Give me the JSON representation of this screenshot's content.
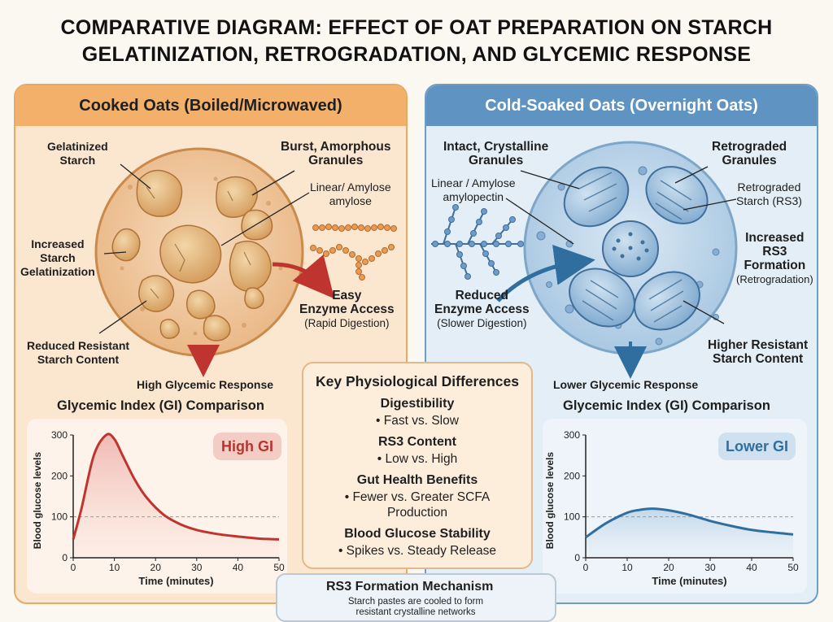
{
  "title": {
    "line1": "COMPARATIVE DIAGRAM: EFFECT OF OAT PREPARATION ON STARCH",
    "line2": "GELATINIZATION, RETROGRADATION, AND GLYCEMIC RESPONSE"
  },
  "left": {
    "header": "Cooked Oats (Boiled/Microwaved)",
    "labels": {
      "gelatinized": [
        "Gelatinized",
        "Starch"
      ],
      "burst": [
        "Burst, Amorphous",
        "Granules"
      ],
      "linear": [
        "Linear/ Amylose",
        "amylose"
      ],
      "increased": [
        "Increased",
        "Starch",
        "Gelatinization"
      ],
      "easy": [
        "Easy",
        "Enzyme Access"
      ],
      "rapid": "(Rapid Digestion)",
      "reduced": [
        "Reduced Resistant",
        "Starch Content"
      ],
      "response": "High Glycemic Response",
      "gi_title": "Glycemic Index (GI) Comparison",
      "badge": "High GI"
    },
    "colors": {
      "accent": "#c0342f",
      "panel": "#fbe7d0",
      "granule": "#e9bd83"
    }
  },
  "right": {
    "header": "Cold-Soaked Oats (Overnight Oats)",
    "labels": {
      "intact": [
        "Intact, Crystalline",
        "Granules"
      ],
      "retro_granules": [
        "Retrograded",
        "Granules"
      ],
      "linear": [
        "Linear / Amylose",
        "amylopectin"
      ],
      "retro_starch": [
        "Retrograded",
        "Starch (RS3)"
      ],
      "increased": [
        "Increased",
        "RS3",
        "Formation"
      ],
      "retrogradation": "(Retrogradation)",
      "reduced": [
        "Reduced",
        "Enzyme Access"
      ],
      "slower": "(Slower Digestion)",
      "higher": [
        "Higher Resistant",
        "Starch Content"
      ],
      "response": "Lower Glycemic Response",
      "gi_title": "Glycemic Index (GI) Comparison",
      "badge": "Lower GI"
    },
    "colors": {
      "accent": "#2f6e9e",
      "panel": "#e3eef6",
      "granule": "#a9c9e3"
    }
  },
  "key": {
    "title": "Key Physiological Differences",
    "items": [
      {
        "heading": "Digestibility",
        "value": "• Fast vs. Slow"
      },
      {
        "heading": "RS3 Content",
        "value": "• Low vs. High"
      },
      {
        "heading": "Gut Health Benefits",
        "value": "• Fewer vs. Greater SCFA",
        "value2": "Production"
      },
      {
        "heading": "Blood Glucose Stability",
        "value": "• Spikes vs. Steady Release"
      }
    ]
  },
  "rs3": {
    "title": "RS3 Formation Mechanism",
    "desc1": "Starch pastes are cooled to form",
    "desc2": "resistant crystalline networks"
  },
  "chart_data": [
    {
      "type": "area",
      "title": "Glycemic Index (GI) Comparison",
      "xlabel": "Time (minutes)",
      "ylabel": "Blood glucose levels",
      "xlim": [
        0,
        50
      ],
      "ylim": [
        0,
        300
      ],
      "x_ticks": [
        0,
        10,
        20,
        30,
        40,
        50
      ],
      "y_ticks": [
        0,
        100,
        200,
        300
      ],
      "reference_line": 100,
      "color": "#c0342f",
      "x": [
        0,
        2,
        5,
        8,
        10,
        12,
        15,
        18,
        22,
        26,
        30,
        35,
        40,
        45,
        50
      ],
      "y": [
        45,
        120,
        250,
        300,
        290,
        250,
        190,
        145,
        105,
        82,
        68,
        58,
        52,
        47,
        45
      ]
    },
    {
      "type": "area",
      "title": "Glycemic Index (GI) Comparison",
      "xlabel": "Time (minutes)",
      "ylabel": "Blood glucose levels",
      "xlim": [
        0,
        50
      ],
      "ylim": [
        0,
        300
      ],
      "x_ticks": [
        0,
        10,
        20,
        30,
        40,
        50
      ],
      "y_ticks": [
        0,
        100,
        200,
        300
      ],
      "reference_line": 100,
      "color": "#2f6e9e",
      "x": [
        0,
        5,
        10,
        13,
        16,
        20,
        25,
        30,
        35,
        40,
        45,
        50
      ],
      "y": [
        50,
        85,
        110,
        117,
        120,
        116,
        105,
        90,
        78,
        68,
        62,
        57
      ]
    }
  ]
}
